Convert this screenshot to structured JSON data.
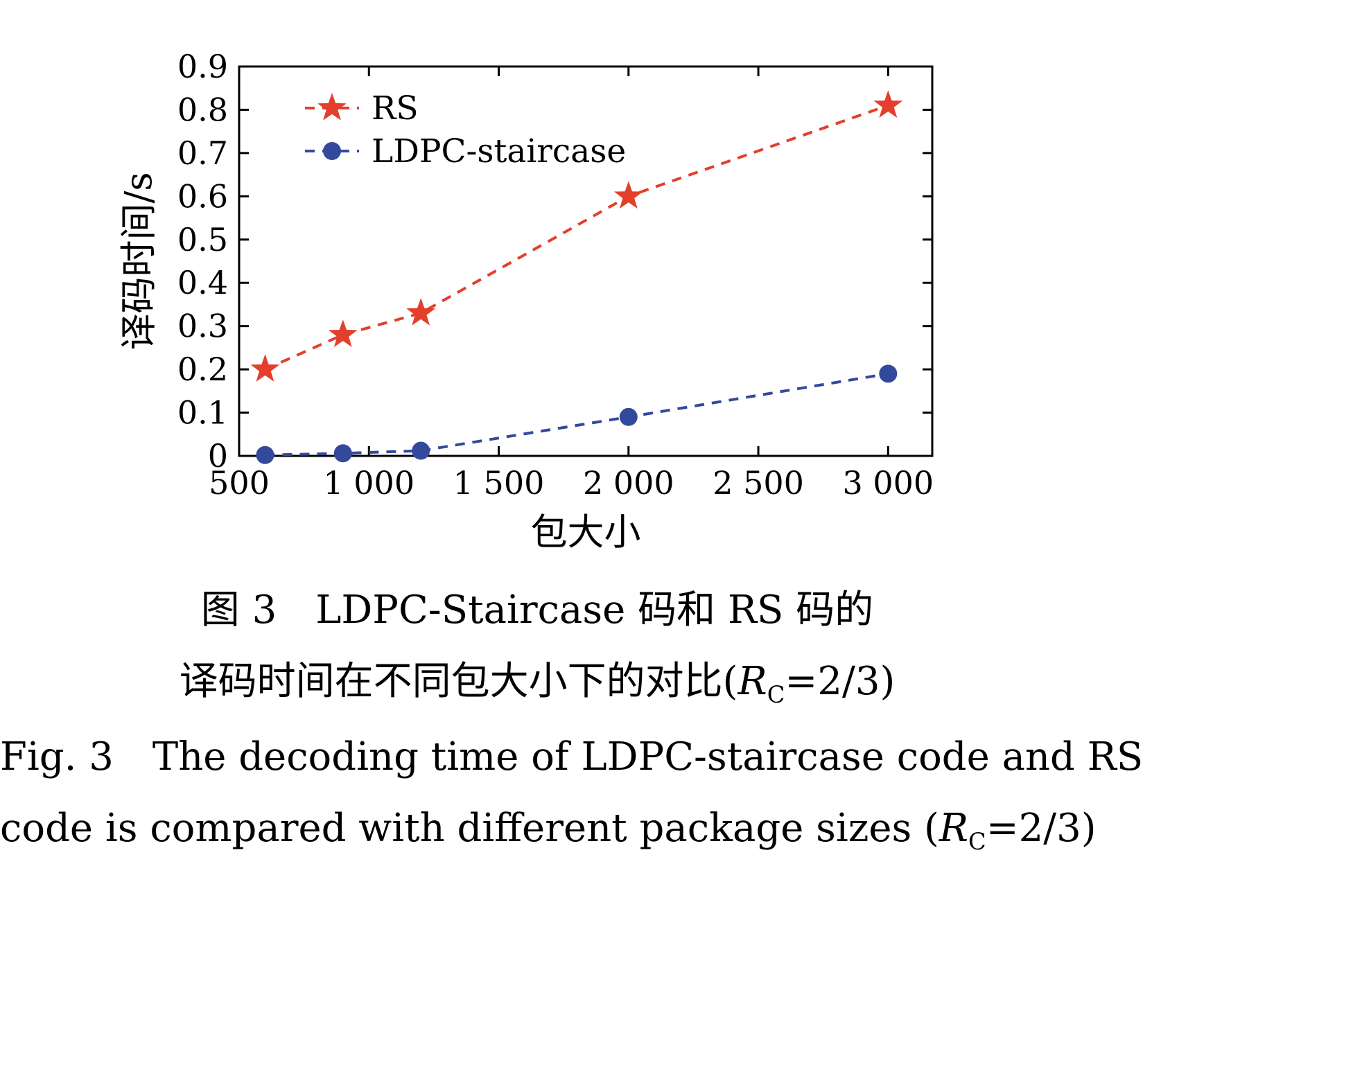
{
  "captions": {
    "zh_line1": "图 3　LDPC-Staircase 码和 RS 码的",
    "zh_line2_prefix": "译码时间在不同包大小下的对比(",
    "rc_symbol": "R",
    "rc_subscript": "C",
    "rc_suffix": "=2/3)",
    "en_line1": "Fig. 3　The decoding time of LDPC-staircase code and RS",
    "en_line2_prefix": "code is compared with different package sizes ("
  },
  "chart_data": {
    "type": "line",
    "title": "",
    "xlabel": "包大小",
    "ylabel": "译码时间/s",
    "xlim": [
      500,
      3170
    ],
    "ylim": [
      0,
      0.9
    ],
    "x_ticks": [
      500,
      1000,
      1500,
      2000,
      2500,
      3000
    ],
    "x_tick_labels": [
      "500",
      "1 000",
      "1 500",
      "2 000",
      "2 500",
      "3 000"
    ],
    "y_ticks": [
      0,
      0.1,
      0.2,
      0.3,
      0.4,
      0.5,
      0.6,
      0.7,
      0.8,
      0.9
    ],
    "y_tick_labels": [
      "0",
      "0.1",
      "0.2",
      "0.3",
      "0.4",
      "0.5",
      "0.6",
      "0.7",
      "0.8",
      "0.9"
    ],
    "grid": false,
    "legend_position": "top-left-inside",
    "axis_color": "#000000",
    "series": [
      {
        "name": "RS",
        "color": "#e2402c",
        "marker": "star",
        "line_style": "dashed",
        "x": [
          600,
          900,
          1200,
          2000,
          3000
        ],
        "y": [
          0.2,
          0.28,
          0.33,
          0.6,
          0.81
        ]
      },
      {
        "name": "LDPC-staircase",
        "color": "#33499c",
        "marker": "circle",
        "line_style": "dashed",
        "x": [
          600,
          900,
          1200,
          2000,
          3000
        ],
        "y": [
          0.002,
          0.006,
          0.012,
          0.09,
          0.19
        ]
      }
    ]
  }
}
